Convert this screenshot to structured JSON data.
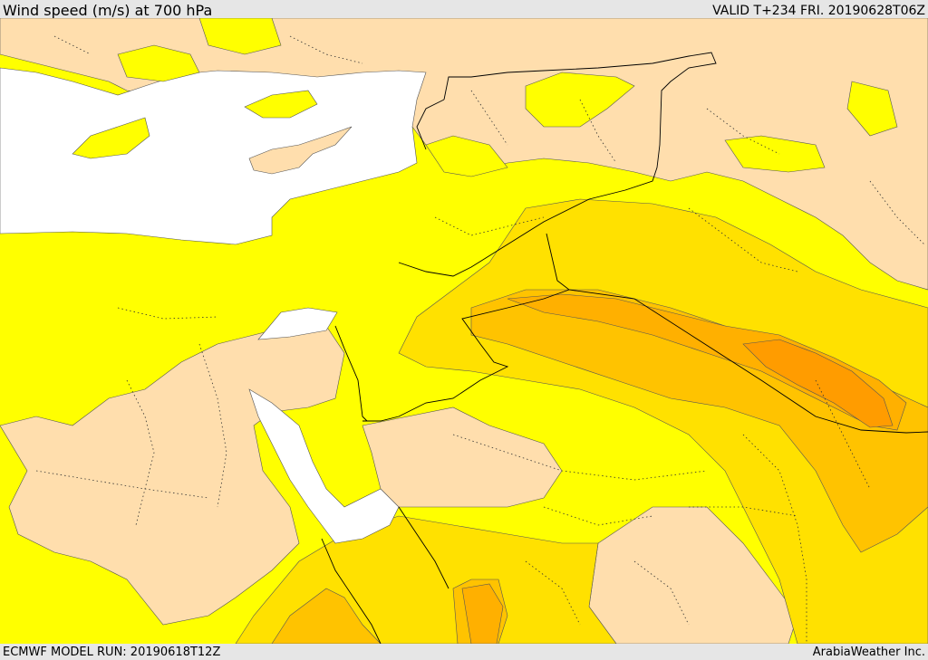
{
  "header": {
    "title": "Wind speed (m/s) at 700 hPa",
    "valid": "VALID T+234 FRI. 20190628T06Z"
  },
  "footer": {
    "model_run": "ECMWF MODEL RUN: 20190618T12Z",
    "credit": "ArabiaWeather Inc."
  },
  "legend_colors": {
    "low": "#ffdead",
    "light": "#ffff00",
    "medium": "#ffe100",
    "strong": "#ffc300",
    "stronger": "#ffb000",
    "strongest": "#ff9c00",
    "sea": "#ffffff"
  }
}
